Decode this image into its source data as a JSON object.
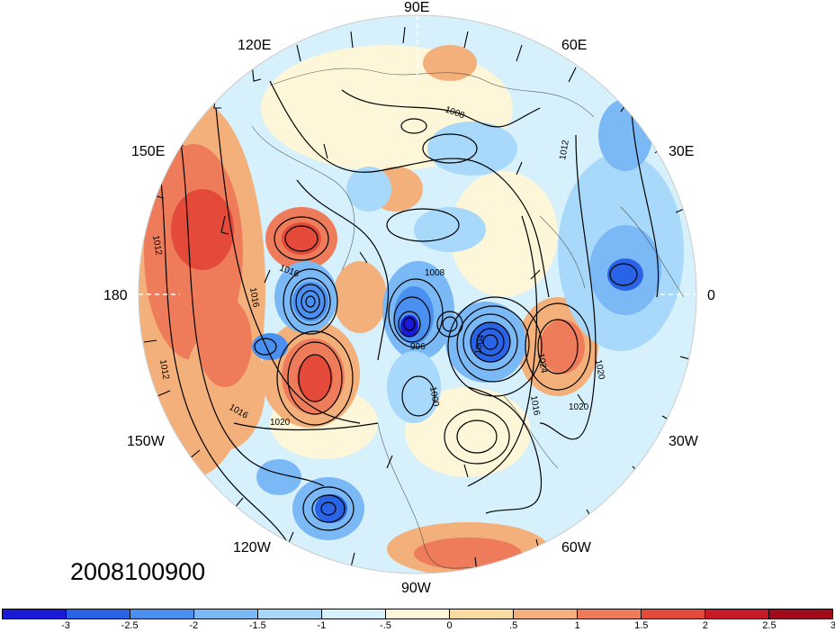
{
  "map": {
    "projection": "polar stereographic (Northern Hemisphere)",
    "longitude_labels": {
      "lon_90e": "90E",
      "lon_120e": "120E",
      "lon_60e": "60E",
      "lon_150e": "150E",
      "lon_30e": "30E",
      "lon_180": "180",
      "lon_0": "0",
      "lon_150w": "150W",
      "lon_30w": "30W",
      "lon_120w": "120W",
      "lon_60w": "60W",
      "lon_90w": "90W"
    },
    "contour_labels": [
      "1012",
      "1016",
      "1020",
      "1024",
      "1008",
      "1004",
      "1000",
      "996"
    ],
    "overlays": [
      "shaded anomaly field",
      "sea-level pressure contours",
      "wind barbs",
      "coastlines"
    ],
    "colors": {
      "background": "#ffffff",
      "contour": "#000000"
    }
  },
  "date_label": "2008100900",
  "colorbar": {
    "colors": [
      "#1a1ad8",
      "#2a64e6",
      "#4a90f0",
      "#7ab8f6",
      "#a8d8fa",
      "#d6f0fc",
      "#fdf6d8",
      "#f8dca0",
      "#f4b07a",
      "#ee7c5a",
      "#e44a3a",
      "#c81a26",
      "#a00c1c"
    ],
    "ticks": [
      "-3",
      "-2.5",
      "-2",
      "-1.5",
      "-1",
      "-.5",
      "0",
      ".5",
      "1",
      "1.5",
      "2",
      "2.5",
      "3"
    ]
  }
}
